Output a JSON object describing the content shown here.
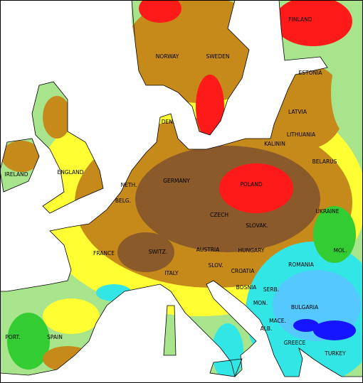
{
  "labels": [
    "NORWAY",
    "SWEDEN",
    "FINLAND",
    "ESTONIA",
    "LATVIA",
    "LITHUANIA",
    "KALININ",
    "BELARUS",
    "IRELAND",
    "ENGLAND",
    "NETH.",
    "BELG.",
    "DEN.",
    "GERMANY",
    "POLAND",
    "CZECH",
    "SLOVAK.",
    "UKRAINE",
    "FRANCE",
    "SWITZ.",
    "AUSTRIA",
    "HUNGARY",
    "ROMANIA",
    "MOL.",
    "SLOV.",
    "CROATIA",
    "ITALY",
    "BOSNIA",
    "SERB.",
    "MON.",
    "BULGARIA",
    "MACE.",
    "ALB.",
    "GREECE",
    "TURKEY",
    "PORT.",
    "SPAIN"
  ]
}
